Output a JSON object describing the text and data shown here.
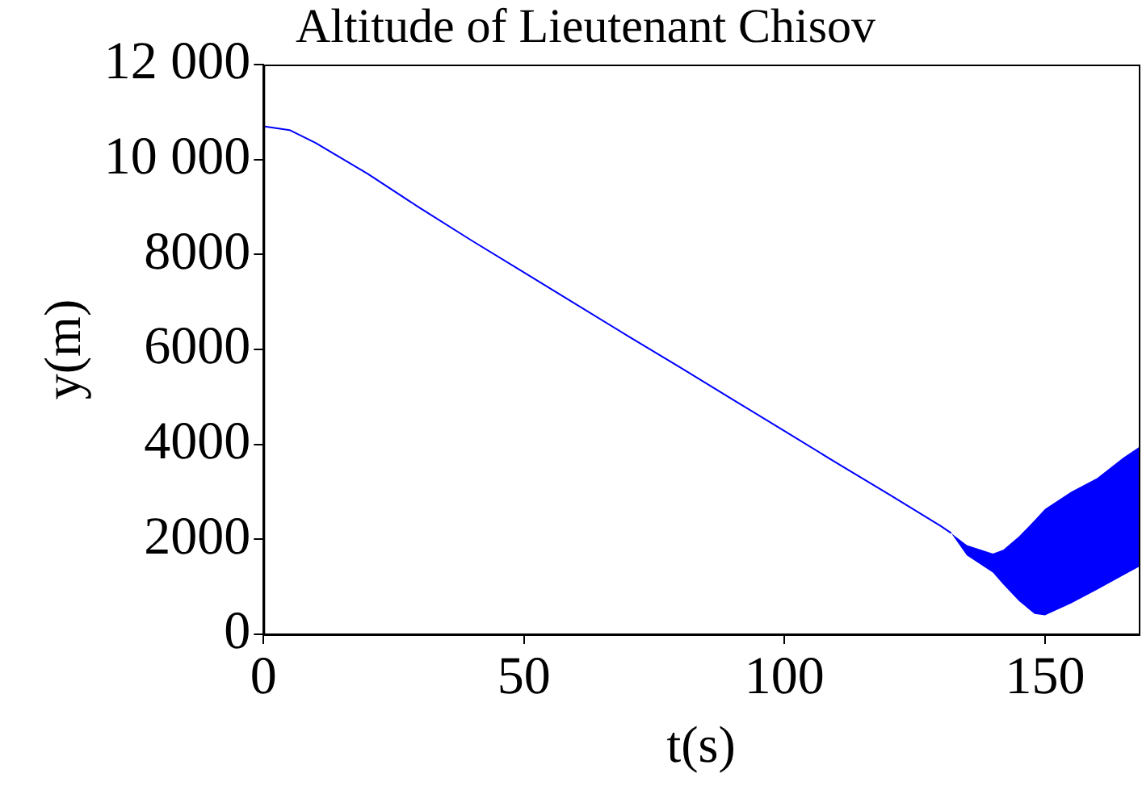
{
  "chart_data": {
    "type": "line",
    "title": "Altitude of Lieutenant Chisov",
    "xlabel": "t(s)",
    "ylabel": "y(m)",
    "xlim": [
      0,
      168
    ],
    "ylim": [
      0,
      12000
    ],
    "xticks": [
      0,
      50,
      100,
      150
    ],
    "yticks": [
      0,
      2000,
      4000,
      6000,
      8000,
      {
        "value": 10000,
        "label": "10 000"
      },
      {
        "value": 12000,
        "label": "12 000"
      }
    ],
    "grid": false,
    "legend": false,
    "marker": "none",
    "line_style": "solid",
    "series": [
      {
        "color": "#0000ff",
        "x": [
          0,
          5,
          10,
          20,
          30,
          40,
          50,
          60,
          70,
          80,
          90,
          100,
          110,
          120,
          130,
          132,
          135,
          140,
          142,
          145,
          148,
          150,
          155,
          160,
          165,
          168
        ],
        "values": [
          10700,
          10620,
          10350,
          9700,
          8980,
          8290,
          7620,
          6950,
          6280,
          5620,
          4950,
          4280,
          3610,
          2950,
          2280,
          2130,
          null,
          null,
          null,
          null,
          null,
          null,
          null,
          null,
          null,
          null
        ],
        "lower": [
          null,
          null,
          null,
          null,
          null,
          null,
          null,
          null,
          null,
          null,
          null,
          null,
          null,
          null,
          null,
          2130,
          1660,
          1300,
          1050,
          700,
          430,
          400,
          650,
          940,
          1240,
          1420
        ],
        "upper": [
          null,
          null,
          null,
          null,
          null,
          null,
          null,
          null,
          null,
          null,
          null,
          null,
          null,
          null,
          null,
          2130,
          1880,
          1700,
          1780,
          2060,
          2400,
          2640,
          3000,
          3290,
          3720,
          3940
        ]
      }
    ]
  }
}
